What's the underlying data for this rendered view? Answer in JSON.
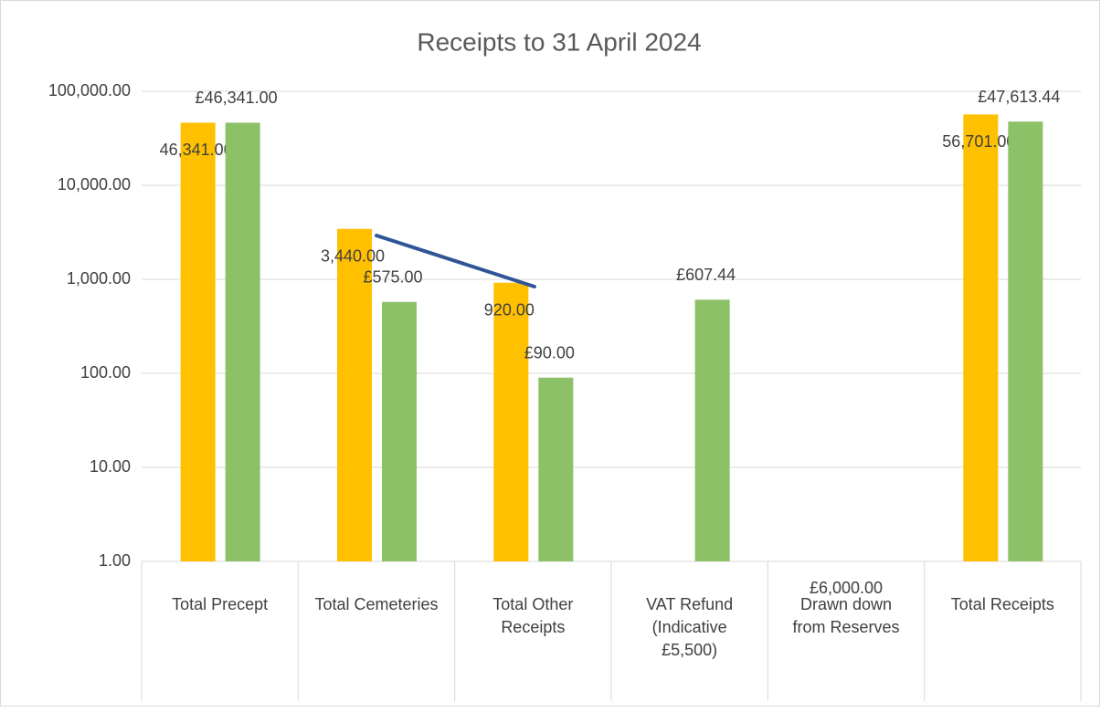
{
  "chart_data": {
    "type": "bar",
    "title": "Receipts to 31 April 2024",
    "categories": [
      "Total Precept",
      "Total Cemeteries",
      "Total Other Receipts",
      "VAT Refund (Indicative £5,500)",
      "Drawn down from Reserves",
      "Total Receipts"
    ],
    "series": [
      {
        "color": "#ffc000",
        "values": [
          46341,
          3440,
          920,
          null,
          null,
          56701
        ],
        "value_labels": [
          "46,341.00",
          "3,440.00",
          "920.00",
          null,
          null,
          "56,701.00"
        ]
      },
      {
        "color": "#8cc168",
        "values": [
          46341,
          575,
          90,
          607.44,
          -6000,
          47613.44
        ],
        "value_labels": [
          "£46,341.00",
          "£575.00",
          "£90.00",
          "£607.44",
          "£6,000.00",
          "£47,613.44"
        ]
      }
    ],
    "log_scale": true,
    "ylim": [
      1,
      100000
    ],
    "yticks": [
      {
        "value": 1,
        "label": "1.00"
      },
      {
        "value": 10,
        "label": "10.00"
      },
      {
        "value": 100,
        "label": "100.00"
      },
      {
        "value": 1000,
        "label": "1,000.00"
      },
      {
        "value": 10000,
        "label": "10,000.00"
      },
      {
        "value": 100000,
        "label": "100,000.00"
      }
    ],
    "grid": true
  }
}
